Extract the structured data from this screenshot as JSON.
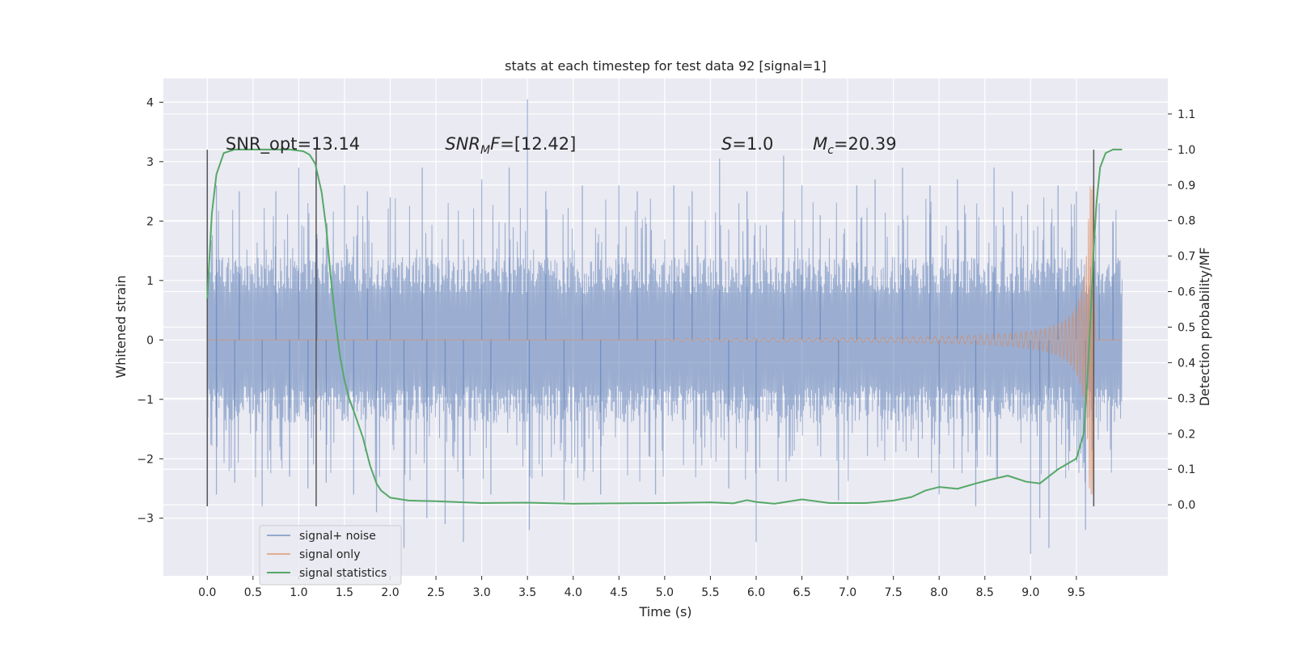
{
  "chart_data": {
    "type": "line",
    "title": "stats at each timestep for test data 92 [signal=1]",
    "xlabel": "Time (s)",
    "ylabel_left": "Whitened strain",
    "ylabel_right": "Detection probability/MF",
    "xlim": [
      -0.48,
      10.5
    ],
    "ylim_left": [
      -3.97,
      4.4
    ],
    "ylim_right": [
      -0.2,
      1.2
    ],
    "x_ticks": [
      0.0,
      0.5,
      1.0,
      1.5,
      2.0,
      2.5,
      3.0,
      3.5,
      4.0,
      4.5,
      5.0,
      5.5,
      6.0,
      6.5,
      7.0,
      7.5,
      8.0,
      8.5,
      9.0,
      9.5
    ],
    "x_tick_labels": [
      "0.0",
      "0.5",
      "1.0",
      "1.5",
      "2.0",
      "2.5",
      "3.0",
      "3.5",
      "4.0",
      "4.5",
      "5.0",
      "5.5",
      "6.0",
      "6.5",
      "7.0",
      "7.5",
      "8.0",
      "8.5",
      "9.0",
      "9.5"
    ],
    "y_left_ticks": [
      -3,
      -2,
      -1,
      0,
      1,
      2,
      3,
      4
    ],
    "y_left_tick_labels": [
      "−3",
      "−2",
      "−1",
      "0",
      "1",
      "2",
      "3",
      "4"
    ],
    "y_right_ticks": [
      0.0,
      0.1,
      0.2,
      0.3,
      0.4,
      0.5,
      0.6,
      0.7,
      0.8,
      0.9,
      1.0,
      1.1
    ],
    "y_right_tick_labels": [
      "0.0",
      "0.1",
      "0.2",
      "0.3",
      "0.4",
      "0.5",
      "0.6",
      "0.7",
      "0.8",
      "0.9",
      "1.0",
      "1.1"
    ],
    "series": [
      {
        "name": "signal+ noise",
        "color": "#4c72b0",
        "opacity": 0.5,
        "t_start": 0.0,
        "t_end": 10.0,
        "core_amplitude": 1.4,
        "spikes": [
          [
            0.0,
            1.9
          ],
          [
            0.1,
            -2.6
          ],
          [
            0.1,
            2.6
          ],
          [
            0.3,
            -2.4
          ],
          [
            0.35,
            2.5
          ],
          [
            0.6,
            -2.8
          ],
          [
            0.75,
            2.5
          ],
          [
            0.9,
            -2.3
          ],
          [
            1.0,
            2.9
          ],
          [
            1.1,
            -2.5
          ],
          [
            1.2,
            1.7
          ],
          [
            1.3,
            -2.4
          ],
          [
            1.5,
            2.6
          ],
          [
            1.6,
            -2.6
          ],
          [
            1.75,
            2.5
          ],
          [
            1.85,
            -2.9
          ],
          [
            2.0,
            2.4
          ],
          [
            2.15,
            -3.5
          ],
          [
            2.35,
            2.9
          ],
          [
            2.4,
            -3.0
          ],
          [
            2.6,
            -3.1
          ],
          [
            2.8,
            -3.4
          ],
          [
            3.0,
            2.7
          ],
          [
            3.1,
            -2.6
          ],
          [
            3.3,
            2.9
          ],
          [
            3.5,
            4.05
          ],
          [
            3.52,
            -3.2
          ],
          [
            3.7,
            2.5
          ],
          [
            3.9,
            -2.7
          ],
          [
            4.1,
            2.6
          ],
          [
            4.3,
            -2.6
          ],
          [
            4.5,
            2.6
          ],
          [
            4.7,
            2.5
          ],
          [
            4.9,
            -2.6
          ],
          [
            5.1,
            2.6
          ],
          [
            5.3,
            2.5
          ],
          [
            5.6,
            3.05
          ],
          [
            5.7,
            -2.5
          ],
          [
            5.9,
            2.5
          ],
          [
            6.0,
            -3.4
          ],
          [
            6.3,
            3.1
          ],
          [
            6.5,
            2.6
          ],
          [
            6.7,
            2.1
          ],
          [
            6.9,
            -2.7
          ],
          [
            7.1,
            2.6
          ],
          [
            7.3,
            2.7
          ],
          [
            7.6,
            2.9
          ],
          [
            7.9,
            2.6
          ],
          [
            8.0,
            -2.6
          ],
          [
            8.2,
            2.7
          ],
          [
            8.4,
            -2.8
          ],
          [
            8.6,
            2.9
          ],
          [
            8.8,
            2.5
          ],
          [
            9.0,
            -3.6
          ],
          [
            9.1,
            -3.0
          ],
          [
            9.2,
            -3.5
          ],
          [
            9.3,
            2.6
          ],
          [
            9.5,
            2.5
          ],
          [
            9.6,
            -3.2
          ],
          [
            9.75,
            2.3
          ],
          [
            9.9,
            2.0
          ]
        ]
      },
      {
        "name": "signal only",
        "color": "#dd8452",
        "opacity": 0.6,
        "chirp_start": 5.0,
        "chirp_end": 9.69,
        "peak_amplitude": 2.6
      },
      {
        "name": "signal statistics",
        "color": "#55a868",
        "axis": "right",
        "points": [
          [
            0.0,
            0.58
          ],
          [
            0.05,
            0.82
          ],
          [
            0.1,
            0.93
          ],
          [
            0.18,
            0.99
          ],
          [
            0.3,
            1.0
          ],
          [
            0.6,
            1.0
          ],
          [
            0.9,
            1.0
          ],
          [
            1.05,
            0.995
          ],
          [
            1.12,
            0.985
          ],
          [
            1.18,
            0.96
          ],
          [
            1.25,
            0.88
          ],
          [
            1.3,
            0.78
          ],
          [
            1.35,
            0.64
          ],
          [
            1.4,
            0.52
          ],
          [
            1.45,
            0.42
          ],
          [
            1.5,
            0.35
          ],
          [
            1.55,
            0.3
          ],
          [
            1.62,
            0.25
          ],
          [
            1.7,
            0.19
          ],
          [
            1.78,
            0.11
          ],
          [
            1.85,
            0.06
          ],
          [
            1.9,
            0.04
          ],
          [
            2.0,
            0.02
          ],
          [
            2.2,
            0.012
          ],
          [
            2.5,
            0.01
          ],
          [
            3.0,
            0.005
          ],
          [
            3.5,
            0.006
          ],
          [
            4.0,
            0.003
          ],
          [
            4.5,
            0.004
          ],
          [
            5.0,
            0.005
          ],
          [
            5.5,
            0.007
          ],
          [
            5.75,
            0.004
          ],
          [
            5.9,
            0.013
          ],
          [
            6.0,
            0.008
          ],
          [
            6.2,
            0.003
          ],
          [
            6.5,
            0.015
          ],
          [
            6.8,
            0.005
          ],
          [
            7.2,
            0.005
          ],
          [
            7.5,
            0.012
          ],
          [
            7.7,
            0.022
          ],
          [
            7.85,
            0.04
          ],
          [
            8.0,
            0.05
          ],
          [
            8.2,
            0.045
          ],
          [
            8.4,
            0.06
          ],
          [
            8.55,
            0.07
          ],
          [
            8.75,
            0.082
          ],
          [
            8.95,
            0.065
          ],
          [
            9.1,
            0.06
          ],
          [
            9.3,
            0.1
          ],
          [
            9.5,
            0.13
          ],
          [
            9.58,
            0.2
          ],
          [
            9.62,
            0.35
          ],
          [
            9.66,
            0.55
          ],
          [
            9.69,
            0.72
          ],
          [
            9.72,
            0.85
          ],
          [
            9.76,
            0.95
          ],
          [
            9.82,
            0.99
          ],
          [
            9.9,
            1.0
          ],
          [
            10.0,
            1.0
          ]
        ]
      }
    ],
    "vertical_markers": [
      {
        "x": 0.0,
        "y_from": -2.8,
        "y_to": 3.2
      },
      {
        "x": 1.19,
        "y_from": -2.8,
        "y_to": 3.2
      },
      {
        "x": 9.69,
        "y_from": -2.8,
        "y_to": 3.2
      }
    ],
    "annotations": [
      {
        "id": "snr-opt",
        "x": 0.2,
        "y": 3.2,
        "label": "SNR_opt=13.14"
      },
      {
        "id": "snr-mf",
        "x": 2.6,
        "y": 3.2,
        "label": "SNR_MF=[12.42]",
        "math_base": "SNR",
        "math_sub": "M",
        "math_rest": "F=[12.42]"
      },
      {
        "id": "s",
        "x": 5.62,
        "y": 3.2,
        "label": "S=1.0",
        "math_base": "S",
        "math_rest": "=1.0"
      },
      {
        "id": "mc",
        "x": 6.62,
        "y": 3.2,
        "label": "M_c=20.39",
        "math_base": "M",
        "math_sub": "c",
        "math_rest": "=20.39"
      }
    ],
    "legend": {
      "position": "lower-left",
      "entries": [
        "signal+ noise",
        "signal only",
        "signal statistics"
      ]
    },
    "grid": true,
    "background": "#eaeaf2"
  }
}
